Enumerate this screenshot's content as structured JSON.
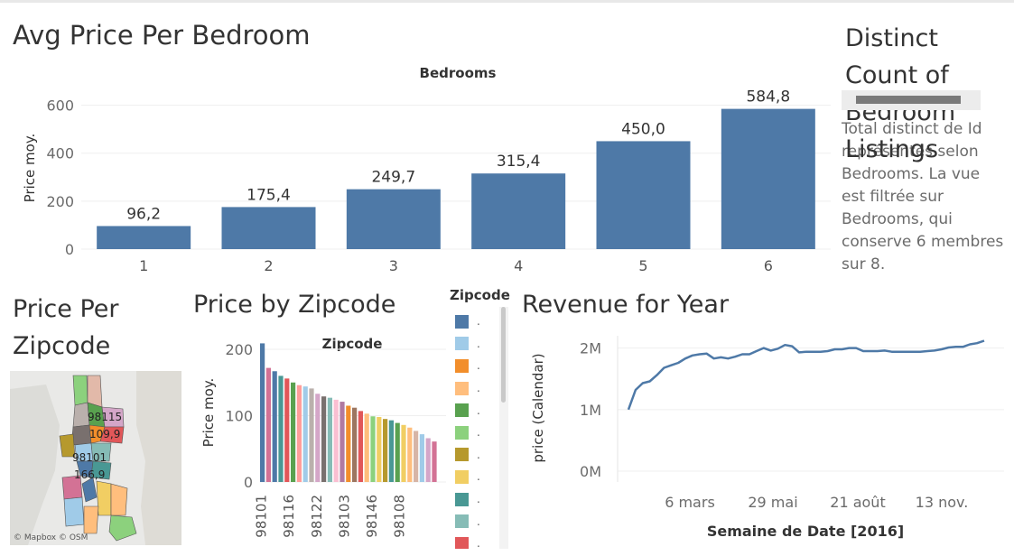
{
  "titles": {
    "avg_price_per_bedroom": "Avg Price Per Bedroom",
    "distinct_count": "Distinct Count of Bedroom Listings",
    "price_per_zipcode": "Price Per Zipcode",
    "price_by_zipcode": "Price by Zipcode",
    "revenue_for_year": "Revenue for Year"
  },
  "distinct_panel": {
    "note": "Total distinct de Id représentés selon Bedrooms. La vue est filtrée sur Bedrooms, qui conserve 6 membres sur 8."
  },
  "map": {
    "labels": [
      "98115",
      "109,9",
      "98101",
      "166,9"
    ],
    "credit": "© Mapbox © OSM"
  },
  "legend": {
    "title": "Zipcode",
    "items": [
      {
        "label": ".",
        "color": "#4e79a7"
      },
      {
        "label": ".",
        "color": "#a0cbe8"
      },
      {
        "label": ".",
        "color": "#f28e2b"
      },
      {
        "label": ".",
        "color": "#ffbe7d"
      },
      {
        "label": ".",
        "color": "#59a14f"
      },
      {
        "label": ".",
        "color": "#8cd17d"
      },
      {
        "label": ".",
        "color": "#b6992d"
      },
      {
        "label": ".",
        "color": "#f1ce63"
      },
      {
        "label": ".",
        "color": "#499894"
      },
      {
        "label": ".",
        "color": "#86bcb6"
      },
      {
        "label": ".",
        "color": "#e15759"
      }
    ]
  },
  "chart_data": [
    {
      "type": "bar",
      "title": "Bedrooms",
      "ylabel": "Price moy.",
      "categories": [
        "1",
        "2",
        "3",
        "4",
        "5",
        "6"
      ],
      "values": [
        96.2,
        175.4,
        249.7,
        315.4,
        450.0,
        584.8
      ],
      "value_labels": [
        "96,2",
        "175,4",
        "249,7",
        "315,4",
        "450,0",
        "584,8"
      ],
      "ylim": [
        0,
        700
      ],
      "yticks": [
        0,
        200,
        400,
        600
      ],
      "color": "#4e79a7"
    },
    {
      "type": "bar",
      "title": "Zipcode",
      "ylabel": "Price moy.",
      "ylim": [
        0,
        215
      ],
      "yticks": [
        0,
        100,
        200
      ],
      "tick_labels": [
        "98101",
        "98116",
        "98122",
        "98103",
        "98146",
        "98108"
      ],
      "values": [
        209,
        172,
        167,
        160,
        156,
        150,
        146,
        144,
        141,
        133,
        129,
        127,
        124,
        121,
        115,
        112,
        107,
        103,
        99,
        98,
        95,
        93,
        89,
        86,
        82,
        77,
        72,
        66,
        61
      ],
      "colors": [
        "#4e79a7",
        "#d37295",
        "#4e79a7",
        "#499894",
        "#e15759",
        "#59a14f",
        "#ff9d9a",
        "#a0cbe8",
        "#bab0ac",
        "#d4a6c8",
        "#79706e",
        "#86bcb6",
        "#fabfd2",
        "#b07aa1",
        "#f28e2b",
        "#9d7660",
        "#e15759",
        "#ffbe7d",
        "#8cd17d",
        "#f1ce63",
        "#b6992d",
        "#499894",
        "#59a14f",
        "#f1ce63",
        "#ffbe7d",
        "#d7b5a6",
        "#a0cbe8",
        "#d4a6c8",
        "#d37295"
      ]
    },
    {
      "type": "line",
      "ylabel": "price (Calendar)",
      "xlabel": "Semaine de Date [2016]",
      "x_ticks": [
        "6 mars",
        "29 mai",
        "21 août",
        "13 nov."
      ],
      "ytick_labels": [
        "0M",
        "1M",
        "2M"
      ],
      "ylim": [
        0,
        2200000
      ],
      "series": [
        {
          "values": [
            1000000,
            1320000,
            1430000,
            1460000,
            1560000,
            1680000,
            1720000,
            1760000,
            1830000,
            1880000,
            1900000,
            1910000,
            1830000,
            1850000,
            1830000,
            1860000,
            1900000,
            1900000,
            1950000,
            2000000,
            1960000,
            1990000,
            2050000,
            2030000,
            1930000,
            1940000,
            1940000,
            1940000,
            1950000,
            1980000,
            1980000,
            2000000,
            2000000,
            1950000,
            1950000,
            1950000,
            1960000,
            1940000,
            1940000,
            1940000,
            1940000,
            1940000,
            1950000,
            1960000,
            1980000,
            2010000,
            2020000,
            2020000,
            2060000,
            2080000,
            2120000
          ],
          "color": "#4e79a7"
        }
      ]
    }
  ]
}
